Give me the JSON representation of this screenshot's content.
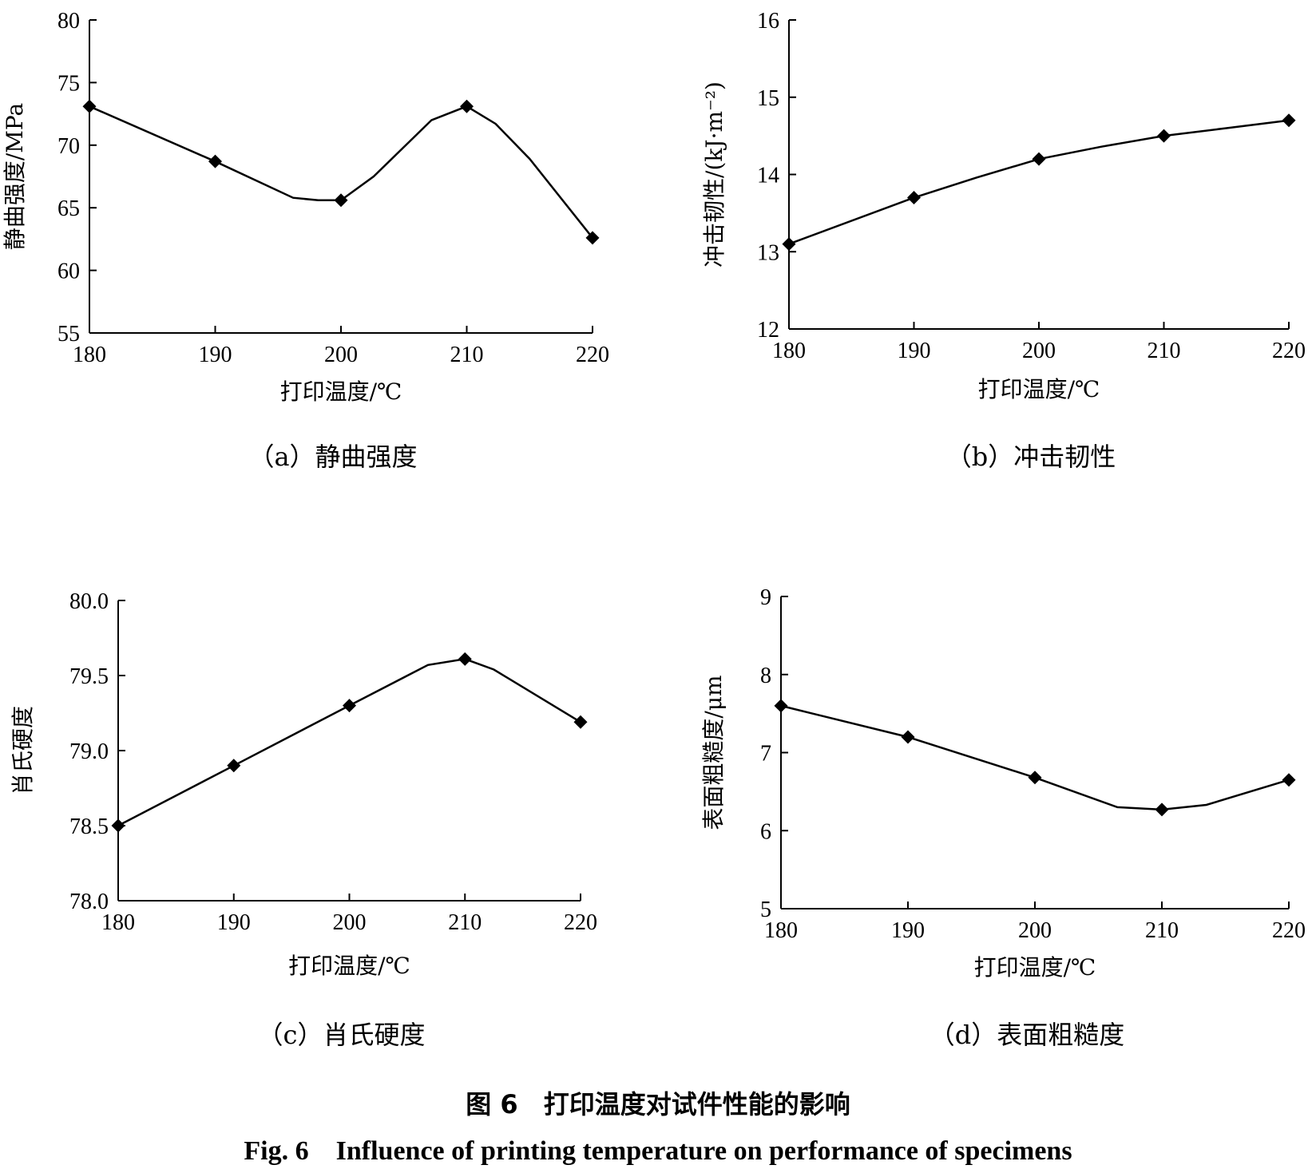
{
  "figure": {
    "title_cn": "图 6　打印温度对试件性能的影响",
    "title_en": "Fig. 6　Influence of printing temperature on performance of specimens"
  },
  "chart_data": [
    {
      "type": "line",
      "caption": "（a）静曲强度",
      "xlabel": "打印温度/℃",
      "ylabel": "静曲强度/MPa",
      "xlim": [
        180,
        220
      ],
      "ylim": [
        55,
        80
      ],
      "xticks": [
        180,
        190,
        200,
        210,
        220
      ],
      "yticks": [
        55,
        60,
        65,
        70,
        75,
        80
      ],
      "ytick_labels": [
        "55",
        "60",
        "65",
        "70",
        "75",
        "80"
      ],
      "markers": {
        "x": [
          180,
          190,
          200,
          210,
          220
        ],
        "y": [
          73.1,
          68.7,
          65.6,
          73.1,
          62.6
        ]
      },
      "curve": {
        "x": [
          180,
          190,
          196.2,
          198.2,
          200,
          202.6,
          207.2,
          210,
          212.3,
          215,
          220
        ],
        "y": [
          73.1,
          68.7,
          65.8,
          65.6,
          65.6,
          67.5,
          72.0,
          73.1,
          71.7,
          68.9,
          62.6
        ]
      },
      "grid": false,
      "legend": "none"
    },
    {
      "type": "line",
      "caption": "（b）冲击韧性",
      "xlabel": "打印温度/℃",
      "ylabel": "冲击韧性/(kJ·m⁻²)",
      "xlim": [
        180,
        220
      ],
      "ylim": [
        12,
        16
      ],
      "xticks": [
        180,
        190,
        200,
        210,
        220
      ],
      "yticks": [
        12,
        13,
        14,
        15,
        16
      ],
      "ytick_labels": [
        "12",
        "13",
        "14",
        "15",
        "16"
      ],
      "markers": {
        "x": [
          180,
          190,
          200,
          210,
          220
        ],
        "y": [
          13.1,
          13.7,
          14.2,
          14.5,
          14.7
        ]
      },
      "curve": {
        "x": [
          180,
          190,
          195,
          200,
          205,
          210,
          215,
          220
        ],
        "y": [
          13.1,
          13.7,
          13.96,
          14.2,
          14.36,
          14.5,
          14.6,
          14.7
        ]
      },
      "grid": false,
      "legend": "none"
    },
    {
      "type": "line",
      "caption": "（c）肖氏硬度",
      "xlabel": "打印温度/℃",
      "ylabel": "肖氏硬度",
      "xlim": [
        180,
        220
      ],
      "ylim": [
        78.0,
        80.0
      ],
      "xticks": [
        180,
        190,
        200,
        210,
        220
      ],
      "yticks": [
        78.0,
        78.5,
        79.0,
        79.5,
        80.0
      ],
      "ytick_labels": [
        "78.0",
        "78.5",
        "79.0",
        "79.5",
        "80.0"
      ],
      "markers": {
        "x": [
          180,
          190,
          200,
          210,
          220
        ],
        "y": [
          78.5,
          78.9,
          79.3,
          79.61,
          79.19
        ]
      },
      "curve": {
        "x": [
          180,
          190,
          200,
          206.8,
          210,
          212.5,
          220
        ],
        "y": [
          78.5,
          78.9,
          79.3,
          79.57,
          79.61,
          79.54,
          79.19
        ]
      },
      "grid": false,
      "legend": "none"
    },
    {
      "type": "line",
      "caption": "（d）表面粗糙度",
      "xlabel": "打印温度/℃",
      "ylabel": "表面粗糙度/μm",
      "xlim": [
        180,
        220
      ],
      "ylim": [
        5,
        9
      ],
      "xticks": [
        180,
        190,
        200,
        210,
        220
      ],
      "yticks": [
        5,
        6,
        7,
        8,
        9
      ],
      "ytick_labels": [
        "5",
        "6",
        "7",
        "8",
        "9"
      ],
      "markers": {
        "x": [
          180,
          190,
          200,
          210,
          220
        ],
        "y": [
          7.6,
          7.2,
          6.68,
          6.27,
          6.65
        ]
      },
      "curve": {
        "x": [
          180,
          190,
          200,
          206.5,
          210,
          213.5,
          220
        ],
        "y": [
          7.6,
          7.2,
          6.68,
          6.3,
          6.27,
          6.33,
          6.65
        ]
      },
      "grid": false,
      "legend": "none"
    }
  ]
}
